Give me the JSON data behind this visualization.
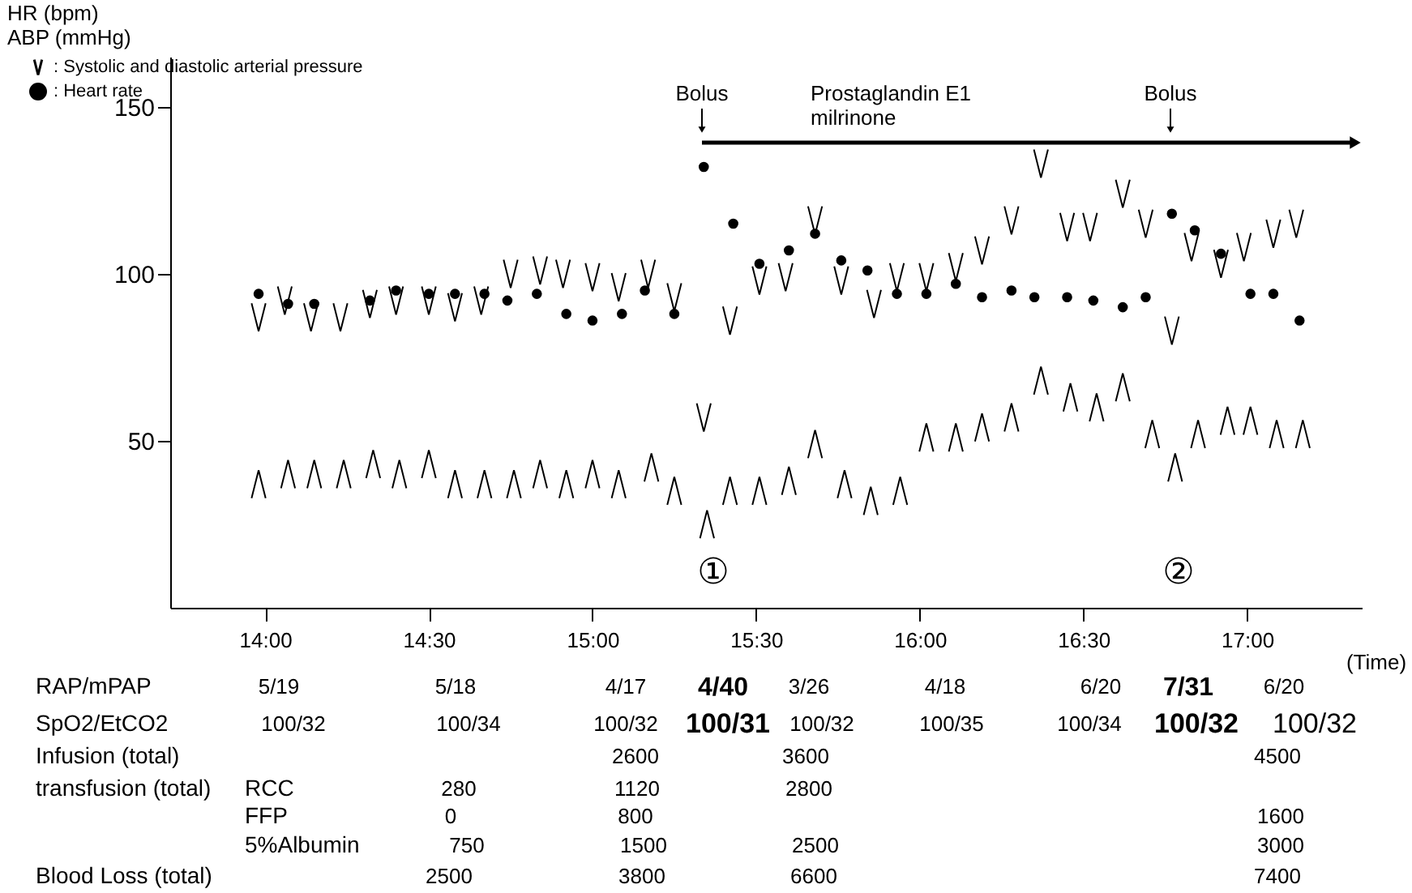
{
  "chart_data": {
    "type": "scatter",
    "ylabel": "HR (bpm)\nABP (mmHg)",
    "xlim": [
      13.71,
      17.35
    ],
    "ylim": [
      0,
      165
    ],
    "xticks": [
      {
        "value": 14,
        "label": "14:00"
      },
      {
        "value": 14.5,
        "label": "14:30"
      },
      {
        "value": 15,
        "label": "15:00"
      },
      {
        "value": 15.5,
        "label": "15:30"
      },
      {
        "value": 16,
        "label": "16:00"
      },
      {
        "value": 16.5,
        "label": "16:30"
      },
      {
        "value": 17,
        "label": "17:00"
      }
    ],
    "yticks": [
      50,
      100,
      150
    ],
    "grid": false,
    "legend": "top left",
    "series": [
      {
        "name": ": Systolic and diastolic arterial pressure",
        "color": "#000000",
        "x": [
          13.98,
          14.06,
          14.14,
          14.23,
          14.32,
          14.4,
          14.5,
          14.58,
          14.66,
          14.75,
          14.84,
          14.91,
          15.0,
          15.08,
          15.17,
          15.25,
          15.34,
          15.42,
          15.51,
          15.59,
          15.68,
          15.76,
          15.86,
          15.93,
          16.02,
          16.11,
          16.19,
          16.28,
          16.37,
          16.45,
          16.52,
          16.62,
          16.69,
          16.77,
          16.83,
          16.92,
          16.99,
          17.08,
          17.15
        ],
        "values": [
          87,
          92,
          87,
          87,
          91,
          92,
          92,
          90,
          92,
          100,
          101,
          100,
          99,
          96,
          100,
          93,
          57,
          86,
          98,
          99,
          116,
          98,
          91,
          99,
          99,
          102,
          107,
          116,
          133,
          114,
          114,
          124,
          115,
          83,
          108,
          103,
          108,
          112,
          115
        ]
      },
      {
        "color": "#000000",
        "x": [
          13.98,
          14.07,
          14.15,
          14.24,
          14.33,
          14.41,
          14.5,
          14.58,
          14.67,
          14.76,
          14.84,
          14.92,
          15.0,
          15.08,
          15.18,
          15.25,
          15.35,
          15.42,
          15.51,
          15.6,
          15.68,
          15.77,
          15.85,
          15.94,
          16.02,
          16.11,
          16.19,
          16.28,
          16.37,
          16.46,
          16.54,
          16.62,
          16.71,
          16.78,
          16.85,
          16.94,
          17.01,
          17.09,
          17.17
        ],
        "values": [
          37,
          40,
          40,
          40,
          43,
          40,
          43,
          37,
          37,
          37,
          40,
          37,
          40,
          37,
          42,
          35,
          25,
          35,
          35,
          38,
          49,
          37,
          32,
          35,
          51,
          51,
          54,
          57,
          68,
          63,
          60,
          66,
          52,
          42,
          52,
          56,
          56,
          52,
          52
        ]
      },
      {
        "name": ": Heart rate",
        "color": "#000000",
        "marker": "circle",
        "x": [
          13.98,
          14.07,
          14.15,
          14.32,
          14.4,
          14.5,
          14.58,
          14.67,
          14.74,
          14.83,
          14.92,
          15.0,
          15.09,
          15.16,
          15.25,
          15.34,
          15.43,
          15.51,
          15.6,
          15.68,
          15.76,
          15.84,
          15.93,
          16.02,
          16.11,
          16.19,
          16.28,
          16.35,
          16.45,
          16.53,
          16.62,
          16.69,
          16.77,
          16.84,
          16.92,
          17.01,
          17.08,
          17.16
        ],
        "values": [
          94,
          91,
          91,
          92,
          95,
          94,
          94,
          94,
          92,
          94,
          88,
          86,
          88,
          95,
          88,
          132,
          115,
          103,
          107,
          112,
          104,
          101,
          94,
          94,
          97,
          93,
          95,
          93,
          93,
          92,
          90,
          93,
          118,
          113,
          106,
          94,
          94,
          86
        ]
      }
    ],
    "annotations": [
      "Bolus",
      "Bolus",
      "Prostaglandin E1\nmilrinone",
      "①",
      "②",
      "(Time)",
      "RAP/mPAP",
      "5/19",
      "5/18",
      "4/17",
      "4/40",
      "3/26",
      "4/18",
      "6/20",
      "7/31",
      "6/20",
      "SpO2/EtCO2",
      "100/32",
      "100/34",
      "100/32",
      "100/31",
      "100/32",
      "100/35",
      "100/34",
      "100/32",
      "100/32",
      "Infusion (total)",
      "2600",
      "3600",
      "4500",
      "transfusion (total)",
      "RCC",
      "280",
      "1120",
      "2800",
      "FFP",
      "0",
      "800",
      "1600",
      "5%Albumin",
      "750",
      "1500",
      "2500",
      "3000",
      "Blood Loss (total)",
      "2500",
      "3800",
      "6600",
      "7400"
    ]
  }
}
